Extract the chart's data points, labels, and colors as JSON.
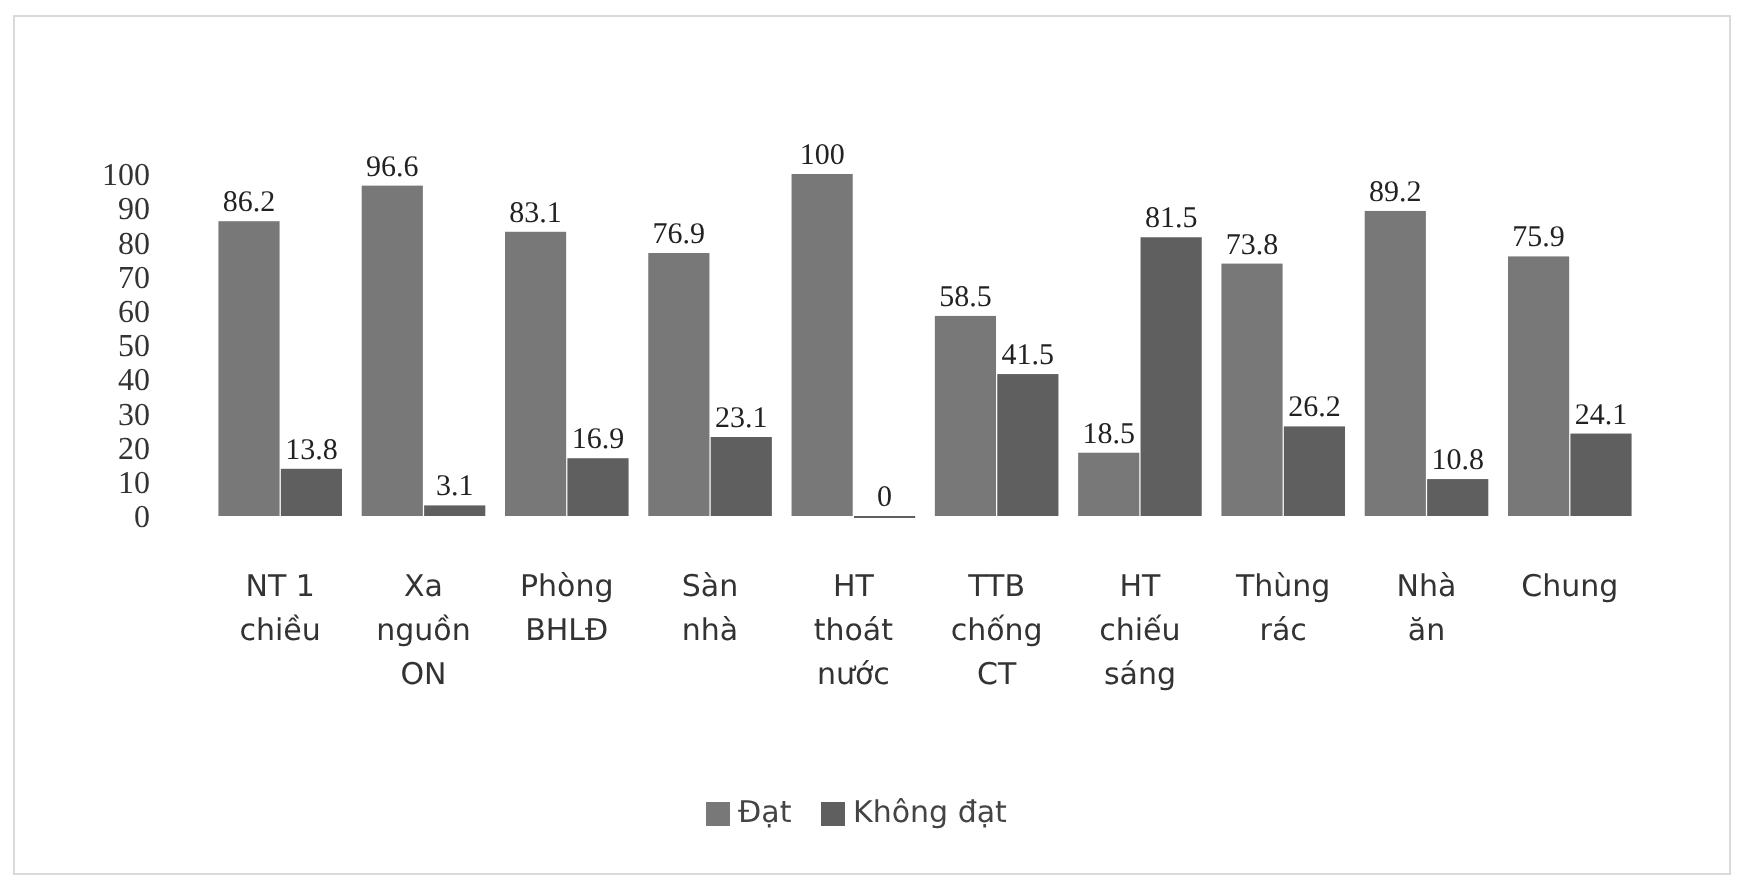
{
  "chart_data": {
    "type": "bar",
    "categories": [
      "NT 1 chiều",
      "Xa nguồn ON",
      "Phòng BHLĐ",
      "Sàn nhà",
      "HT thoát nước",
      "TTB chống CT",
      "HT chiếu sáng",
      "Thùng rác",
      "Nhà ăn",
      "Chung"
    ],
    "series": [
      {
        "name": "Đạt",
        "color": "#787878",
        "values": [
          86.2,
          96.6,
          83.1,
          76.9,
          100,
          58.5,
          18.5,
          73.8,
          89.2,
          75.9
        ]
      },
      {
        "name": "Không đạt",
        "color": "#5f5f5f",
        "values": [
          13.8,
          3.1,
          16.9,
          23.1,
          0,
          41.5,
          81.5,
          26.2,
          10.8,
          24.1
        ]
      }
    ],
    "ylim": [
      0,
      100
    ],
    "yticks": [
      0,
      10,
      20,
      30,
      40,
      50,
      60,
      70,
      80,
      90,
      100
    ],
    "data_labels": true,
    "grid": false,
    "legend": "bottom"
  }
}
